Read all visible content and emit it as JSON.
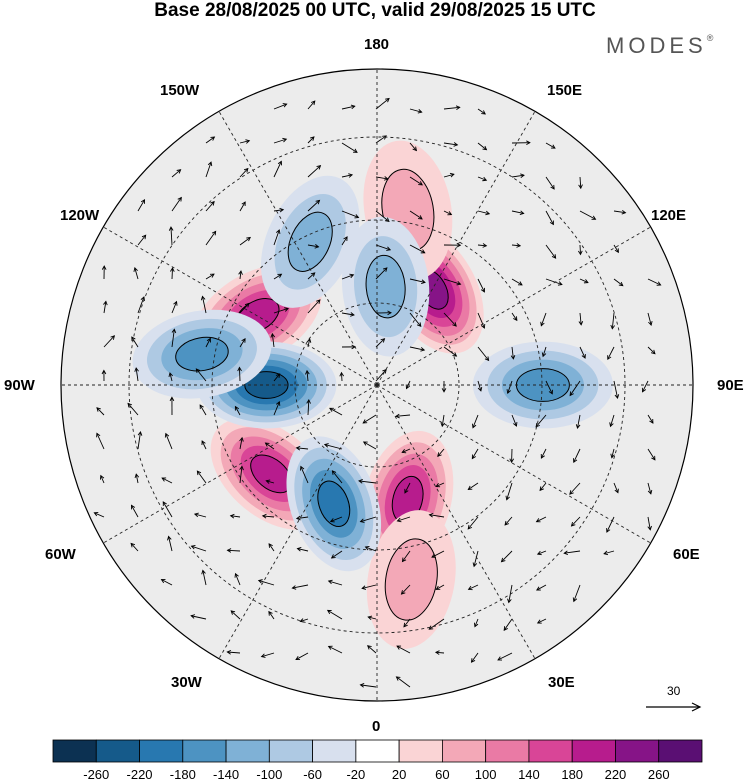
{
  "title": "Base 28/08/2025 00 UTC, valid 29/08/2025 15 UTC",
  "logo": {
    "text": "MODES",
    "mark": "®"
  },
  "map": {
    "projection": "polar-stereographic-north",
    "longitude_labels": {
      "top": "180",
      "top_left": "150W",
      "top_right": "150E",
      "upper_left": "120W",
      "upper_right": "120E",
      "left": "90W",
      "right": "90E",
      "lower_left": "60W",
      "lower_right": "60E",
      "bottom_left": "30W",
      "bottom_right": "30E",
      "bottom": "0"
    },
    "reference_vector": {
      "value": "30"
    },
    "anomaly_features": [
      {
        "kind": "positive",
        "level": 260,
        "lon": 150,
        "lat": 62
      },
      {
        "kind": "positive",
        "level": 220,
        "lon": -120,
        "lat": 55
      },
      {
        "kind": "positive",
        "level": 220,
        "lon": -50,
        "lat": 55
      },
      {
        "kind": "positive",
        "level": 220,
        "lon": 15,
        "lat": 60
      },
      {
        "kind": "positive",
        "level": 100,
        "lon": 170,
        "lat": 45
      },
      {
        "kind": "positive",
        "level": 100,
        "lon": 10,
        "lat": 40
      },
      {
        "kind": "negative",
        "level": -260,
        "lon": -90,
        "lat": 62
      },
      {
        "kind": "negative",
        "level": -220,
        "lon": -20,
        "lat": 58
      },
      {
        "kind": "negative",
        "level": -180,
        "lon": -100,
        "lat": 45
      },
      {
        "kind": "negative",
        "level": -180,
        "lon": 90,
        "lat": 48
      },
      {
        "kind": "negative",
        "level": -140,
        "lon": -155,
        "lat": 50
      },
      {
        "kind": "negative",
        "level": -140,
        "lon": 175,
        "lat": 65
      }
    ]
  },
  "colorbar": {
    "labels": [
      "-260",
      "-220",
      "-180",
      "-140",
      "-100",
      "-60",
      "-20",
      "20",
      "60",
      "100",
      "140",
      "180",
      "220",
      "260"
    ],
    "colors": [
      "#0c3152",
      "#155a8a",
      "#2878b0",
      "#4d93c2",
      "#7fb1d6",
      "#aec9e3",
      "#d8e0ee",
      "#ffffff",
      "#fad4d5",
      "#f3a8b7",
      "#ea7aa5",
      "#d94597",
      "#b71c8d",
      "#861487",
      "#5a0f73"
    ]
  }
}
